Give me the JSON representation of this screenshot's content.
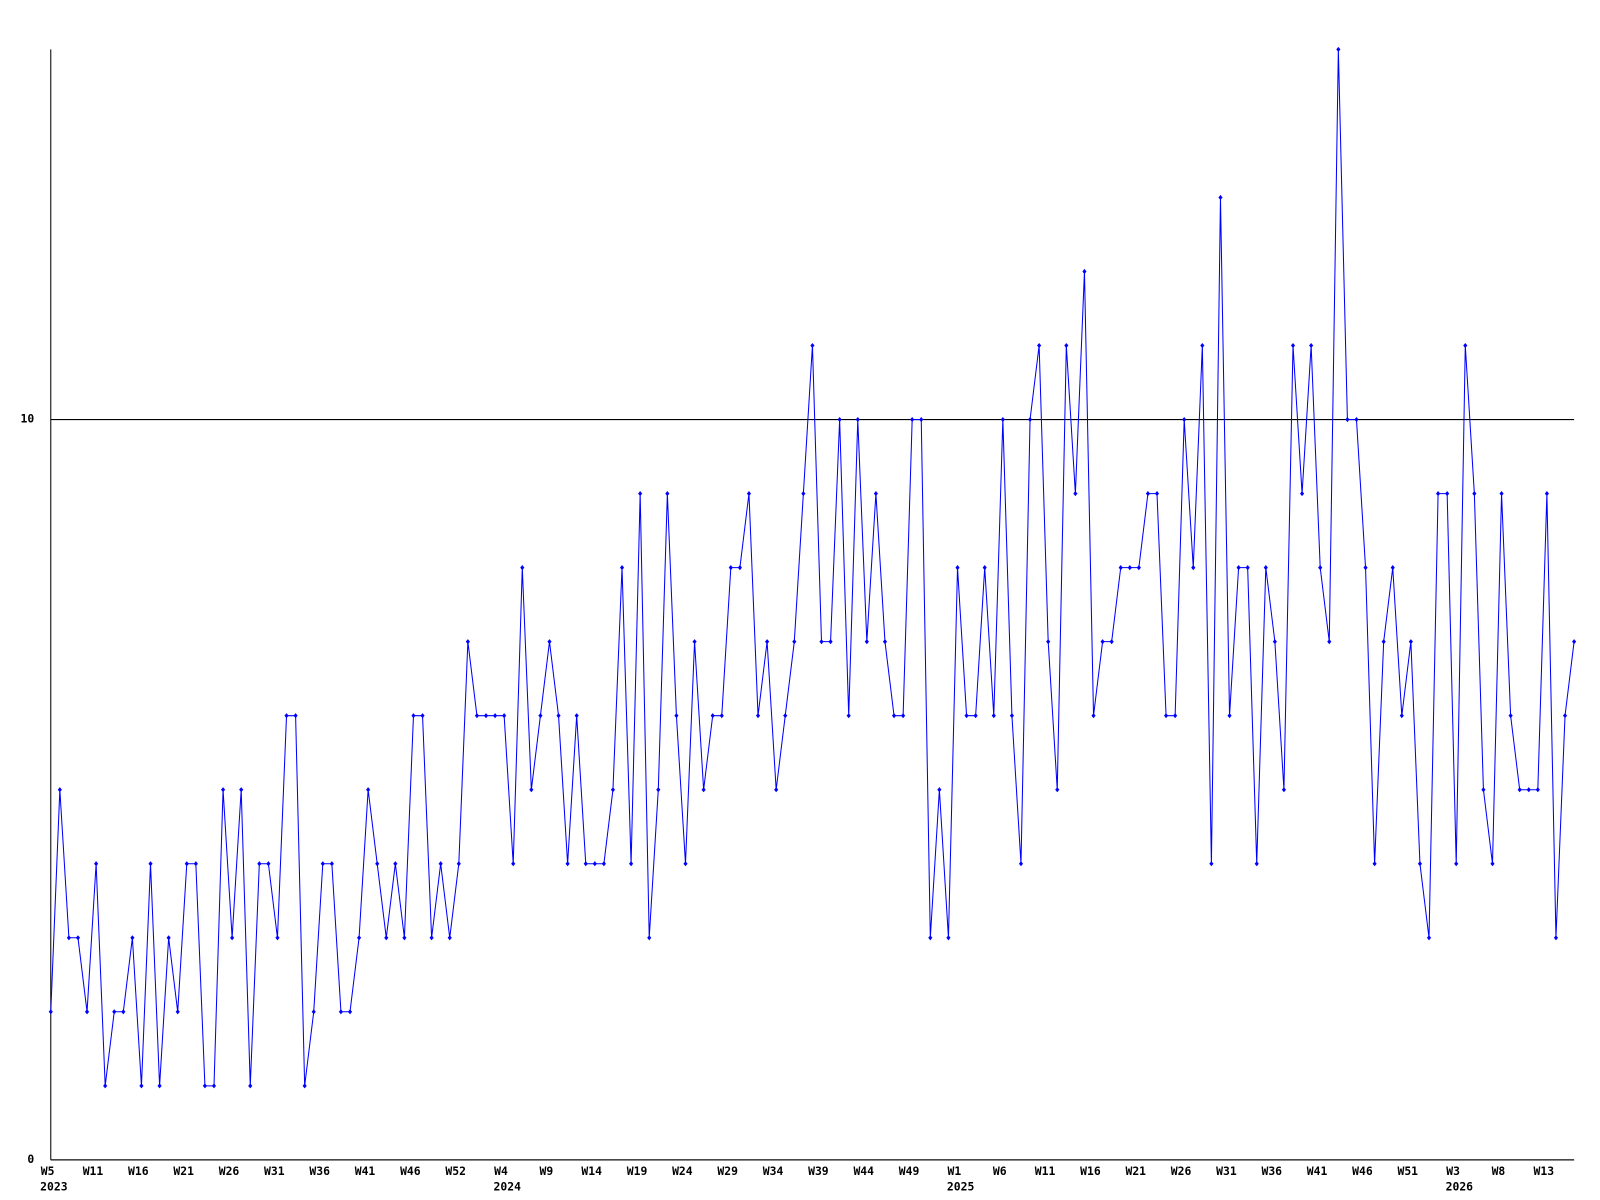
{
  "chart_data": {
    "type": "line",
    "color": "#0000ff",
    "grid": true,
    "ylim": [
      0,
      15
    ],
    "yticks": [
      0,
      10
    ],
    "categories": [
      "W5",
      null,
      null,
      null,
      null,
      "W11",
      null,
      null,
      null,
      null,
      "W16",
      null,
      null,
      null,
      null,
      "W21",
      null,
      null,
      null,
      null,
      "W26",
      null,
      null,
      null,
      null,
      "W31",
      null,
      null,
      null,
      null,
      "W36",
      null,
      null,
      null,
      null,
      "W41",
      null,
      null,
      null,
      null,
      "W46",
      null,
      null,
      null,
      null,
      "W52",
      null,
      null,
      null,
      null,
      "W4",
      null,
      null,
      null,
      null,
      "W9",
      null,
      null,
      null,
      null,
      "W14",
      null,
      null,
      null,
      null,
      "W19",
      null,
      null,
      null,
      null,
      "W24",
      null,
      null,
      null,
      null,
      "W29",
      null,
      null,
      null,
      null,
      "W34",
      null,
      null,
      null,
      null,
      "W39",
      null,
      null,
      null,
      null,
      "W44",
      null,
      null,
      null,
      null,
      "W49",
      null,
      null,
      null,
      null,
      "W1",
      null,
      null,
      null,
      null,
      "W6",
      null,
      null,
      null,
      null,
      "W11",
      null,
      null,
      null,
      null,
      "W16",
      null,
      null,
      null,
      null,
      "W21",
      null,
      null,
      null,
      null,
      "W26",
      null,
      null,
      null,
      null,
      "W31",
      null,
      null,
      null,
      null,
      "W36",
      null,
      null,
      null,
      null,
      "W41",
      null,
      null,
      null,
      null,
      "W46",
      null,
      null,
      null,
      null,
      "W51",
      null,
      null,
      null,
      null,
      "W3",
      null,
      null,
      null,
      null,
      "W8",
      null,
      null,
      null,
      null,
      "W13",
      null,
      null,
      null
    ],
    "category_years": [
      "2023",
      null,
      null,
      null,
      null,
      null,
      null,
      null,
      null,
      null,
      null,
      null,
      null,
      null,
      null,
      null,
      null,
      null,
      null,
      null,
      null,
      null,
      null,
      null,
      null,
      null,
      null,
      null,
      null,
      null,
      null,
      null,
      null,
      null,
      null,
      null,
      null,
      null,
      null,
      null,
      null,
      null,
      null,
      null,
      null,
      null,
      null,
      null,
      null,
      null,
      "2024",
      null,
      null,
      null,
      null,
      null,
      null,
      null,
      null,
      null,
      null,
      null,
      null,
      null,
      null,
      null,
      null,
      null,
      null,
      null,
      null,
      null,
      null,
      null,
      null,
      null,
      null,
      null,
      null,
      null,
      null,
      null,
      null,
      null,
      null,
      null,
      null,
      null,
      null,
      null,
      null,
      null,
      null,
      null,
      null,
      null,
      null,
      null,
      null,
      null,
      "2025",
      null,
      null,
      null,
      null,
      null,
      null,
      null,
      null,
      null,
      null,
      null,
      null,
      null,
      null,
      null,
      null,
      null,
      null,
      null,
      null,
      null,
      null,
      null,
      null,
      null,
      null,
      null,
      null,
      null,
      null,
      null,
      null,
      null,
      null,
      null,
      null,
      null,
      null,
      null,
      null,
      null,
      null,
      null,
      null,
      null,
      null,
      null,
      null,
      null,
      null,
      null,
      null,
      null,
      null,
      "2026",
      null,
      null,
      null,
      null,
      null,
      null,
      null,
      null,
      null,
      null,
      null,
      null,
      null
    ],
    "values": [
      2,
      5,
      3,
      3,
      2,
      4,
      1,
      2,
      2,
      3,
      1,
      4,
      1,
      3,
      2,
      4,
      4,
      1,
      1,
      5,
      3,
      5,
      1,
      4,
      4,
      3,
      6,
      6,
      1,
      2,
      4,
      4,
      2,
      2,
      3,
      5,
      4,
      3,
      4,
      3,
      6,
      6,
      3,
      4,
      3,
      4,
      7,
      6,
      6,
      6,
      6,
      4,
      8,
      5,
      6,
      7,
      6,
      4,
      6,
      4,
      4,
      4,
      5,
      8,
      4,
      9,
      3,
      5,
      9,
      6,
      4,
      7,
      5,
      6,
      6,
      8,
      8,
      9,
      6,
      7,
      5,
      6,
      7,
      9,
      11,
      7,
      7,
      10,
      6,
      10,
      7,
      9,
      7,
      6,
      6,
      10,
      10,
      3,
      5,
      3,
      8,
      6,
      6,
      8,
      6,
      10,
      6,
      4,
      10,
      11,
      7,
      5,
      11,
      9,
      12,
      6,
      7,
      7,
      8,
      8,
      8,
      9,
      9,
      6,
      6,
      10,
      8,
      11,
      4,
      13,
      6,
      8,
      8,
      4,
      8,
      7,
      5,
      11,
      9,
      11,
      8,
      7,
      15,
      10,
      10,
      8,
      4,
      7,
      8,
      6,
      7,
      4,
      3,
      9,
      9,
      4,
      11,
      9,
      5,
      4,
      9,
      6,
      5,
      5,
      5,
      9,
      3,
      6,
      7
    ]
  }
}
